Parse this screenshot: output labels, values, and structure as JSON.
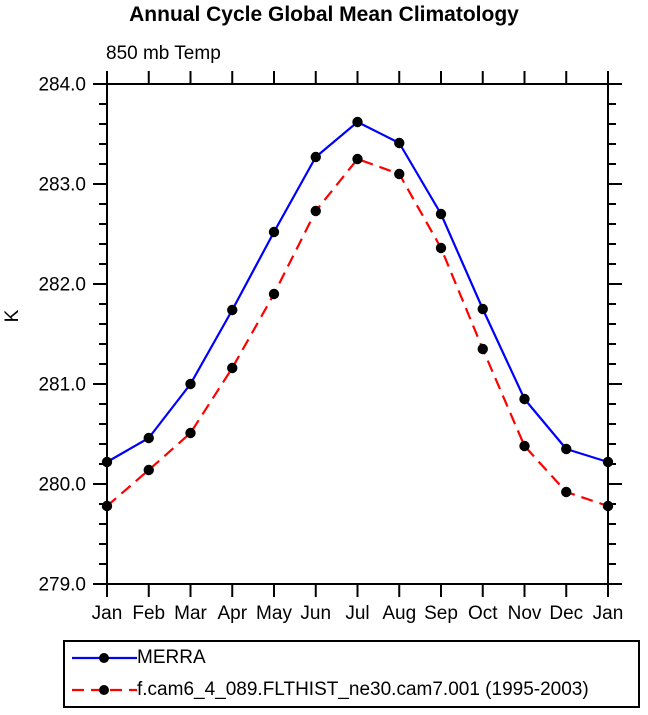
{
  "chart_data": {
    "type": "line",
    "title": "Annual Cycle Global Mean Climatology",
    "subtitle": "850 mb Temp",
    "xlabel": "",
    "ylabel": "K",
    "x_categories": [
      "Jan",
      "Feb",
      "Mar",
      "Apr",
      "May",
      "Jun",
      "Jul",
      "Aug",
      "Sep",
      "Oct",
      "Nov",
      "Dec",
      "Jan"
    ],
    "ylim": [
      279.0,
      284.0
    ],
    "ytick_major_interval": 1.0,
    "ytick_minor_interval": 0.2,
    "ytick_labels": [
      "279.0",
      "280.0",
      "281.0",
      "282.0",
      "283.0",
      "284.0"
    ],
    "grid": false,
    "legend_position": "bottom-left-box",
    "marker": "filled-circle",
    "marker_color": "#000000",
    "axis_color": "#000000",
    "series": [
      {
        "name": "MERRA",
        "color": "#0000ff",
        "line_style": "solid",
        "values": [
          280.22,
          280.46,
          281.0,
          281.74,
          282.52,
          283.27,
          283.62,
          283.41,
          282.7,
          281.75,
          280.85,
          280.35,
          280.22
        ]
      },
      {
        "name": "f.cam6_4_089.FLTHIST_ne30.cam7.001 (1995-2003)",
        "color": "#ff0000",
        "line_style": "dashed",
        "values": [
          279.78,
          280.14,
          280.51,
          281.16,
          281.9,
          282.73,
          283.25,
          283.1,
          282.36,
          281.35,
          280.38,
          279.92,
          279.78
        ]
      }
    ]
  }
}
